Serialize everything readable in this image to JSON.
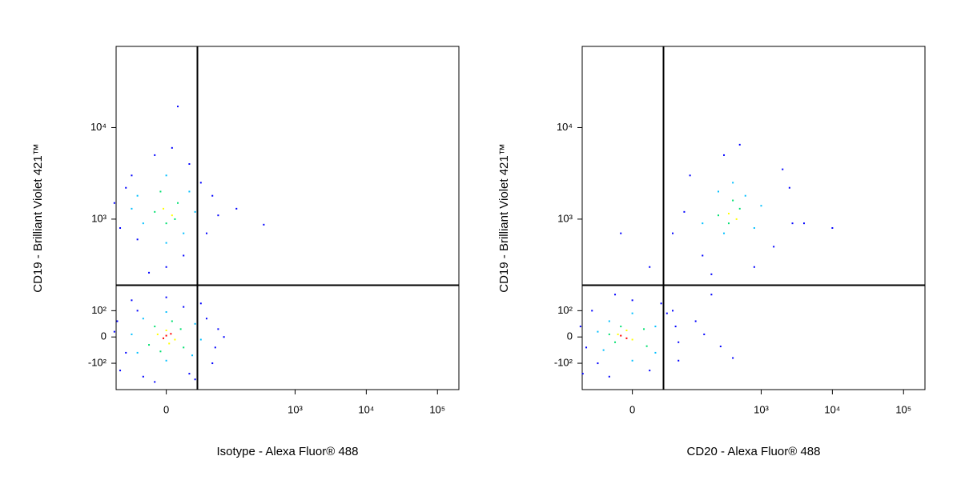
{
  "chart_data": [
    {
      "type": "scatter",
      "xlabel": "Isotype - Alexa Fluor® 488",
      "ylabel": "CD19 - Brilliant Violet 421™",
      "xlim": [
        -87,
        200000
      ],
      "ylim": [
        -194,
        77000
      ],
      "xticks": [
        0,
        {
          "value": 1000,
          "label": "10³"
        },
        {
          "value": 10000,
          "label": "10⁴"
        },
        {
          "value": 100000,
          "label": "10⁵"
        }
      ],
      "yticks": [
        {
          "value": -100,
          "label": "-10²"
        },
        0,
        {
          "value": 100,
          "label": "10²"
        },
        {
          "value": 1000,
          "label": "10³"
        },
        {
          "value": 10000,
          "label": "10⁴"
        }
      ],
      "quadrant_x": 54,
      "quadrant_y": 190,
      "series": [
        {
          "color": "#0000ff",
          "x": [
            -80,
            -60,
            60,
            80,
            -90,
            90,
            -40,
            40,
            0,
            -70,
            70,
            -20,
            30,
            85,
            -85,
            50,
            -50,
            100,
            -80,
            -60,
            60,
            70,
            -90,
            80,
            -20,
            30,
            0,
            -50,
            40,
            -70,
            90,
            10,
            -30,
            363,
            20,
            150
          ],
          "y": [
            -120,
            130,
            120,
            -100,
            20,
            30,
            -140,
            -130,
            140,
            -60,
            70,
            -160,
            110,
            -40,
            60,
            -150,
            100,
            0,
            800,
            3000,
            2500,
            700,
            1500,
            1800,
            5000,
            400,
            300,
            600,
            4000,
            2200,
            1100,
            6000,
            260,
            870,
            17000,
            1300
          ]
        },
        {
          "color": "#00bfff",
          "x": [
            -50,
            50,
            -40,
            45,
            0,
            0,
            -60,
            60,
            -40,
            40,
            -50,
            30,
            0,
            0,
            -60,
            50
          ],
          "y": [
            -60,
            50,
            70,
            -70,
            -90,
            95,
            10,
            -10,
            900,
            2000,
            1800,
            700,
            3000,
            550,
            1300,
            1200
          ]
        },
        {
          "color": "#00e070",
          "x": [
            -30,
            25,
            -20,
            30,
            10,
            -10,
            -20,
            20,
            0,
            -10,
            15
          ],
          "y": [
            -30,
            30,
            40,
            -40,
            60,
            -55,
            1200,
            1500,
            900,
            2000,
            1000
          ]
        },
        {
          "color": "#ffff00",
          "x": [
            -15,
            15,
            0,
            5,
            -5,
            10
          ],
          "y": [
            10,
            -10,
            25,
            -25,
            1300,
            1100
          ]
        },
        {
          "color": "#ff0000",
          "x": [
            0,
            -5,
            8
          ],
          "y": [
            5,
            -5,
            12
          ]
        }
      ]
    },
    {
      "type": "scatter",
      "xlabel": "CD20 - Alexa Fluor® 488",
      "ylabel": "CD19 - Brilliant Violet 421™",
      "xlim": [
        -87,
        200000
      ],
      "ylim": [
        -194,
        77000
      ],
      "xticks": [
        0,
        {
          "value": 1000,
          "label": "10³"
        },
        {
          "value": 10000,
          "label": "10⁴"
        },
        {
          "value": 100000,
          "label": "10⁵"
        }
      ],
      "yticks": [
        {
          "value": -100,
          "label": "-10²"
        },
        0,
        {
          "value": 100,
          "label": "10²"
        },
        {
          "value": 1000,
          "label": "10³"
        },
        {
          "value": 10000,
          "label": "10⁴"
        }
      ],
      "quadrant_x": 54,
      "quadrant_y": 190,
      "series": [
        {
          "color": "#0000ff",
          "x": [
            -86,
            -70,
            60,
            80,
            -90,
            75,
            -40,
            30,
            0,
            -80,
            50,
            -30,
            80,
            -60,
            70,
            100,
            2500,
            2750,
            500,
            150,
            1500,
            300,
            90,
            2000,
            800,
            4000,
            10000,
            200,
            70,
            158,
            269,
            120,
            200,
            30,
            400,
            -20
          ],
          "y": [
            -130,
            100,
            90,
            -90,
            40,
            40,
            -140,
            -120,
            130,
            -40,
            120,
            150,
            -20,
            -100,
            700,
            3000,
            2200,
            900,
            6500,
            400,
            500,
            5000,
            1200,
            3500,
            300,
            900,
            800,
            250,
            100,
            10,
            -36,
            60,
            150,
            300,
            -80,
            700
          ]
        },
        {
          "color": "#00bfff",
          "x": [
            -50,
            40,
            -40,
            40,
            0,
            0,
            -60,
            150,
            600,
            300,
            1000,
            250,
            800,
            400
          ],
          "y": [
            -50,
            40,
            60,
            -60,
            -90,
            90,
            20,
            900,
            1800,
            700,
            1400,
            2000,
            800,
            2500
          ]
        },
        {
          "color": "#00e070",
          "x": [
            -30,
            20,
            -20,
            25,
            -40,
            250,
            500,
            350,
            400
          ],
          "y": [
            -20,
            30,
            40,
            -35,
            10,
            1100,
            1300,
            900,
            1600
          ]
        },
        {
          "color": "#ffff00",
          "x": [
            -25,
            0,
            -10,
            350,
            450
          ],
          "y": [
            10,
            -10,
            25,
            1150,
            1000
          ]
        },
        {
          "color": "#ff0000",
          "x": [
            -20,
            -10
          ],
          "y": [
            5,
            -5
          ]
        }
      ]
    }
  ]
}
